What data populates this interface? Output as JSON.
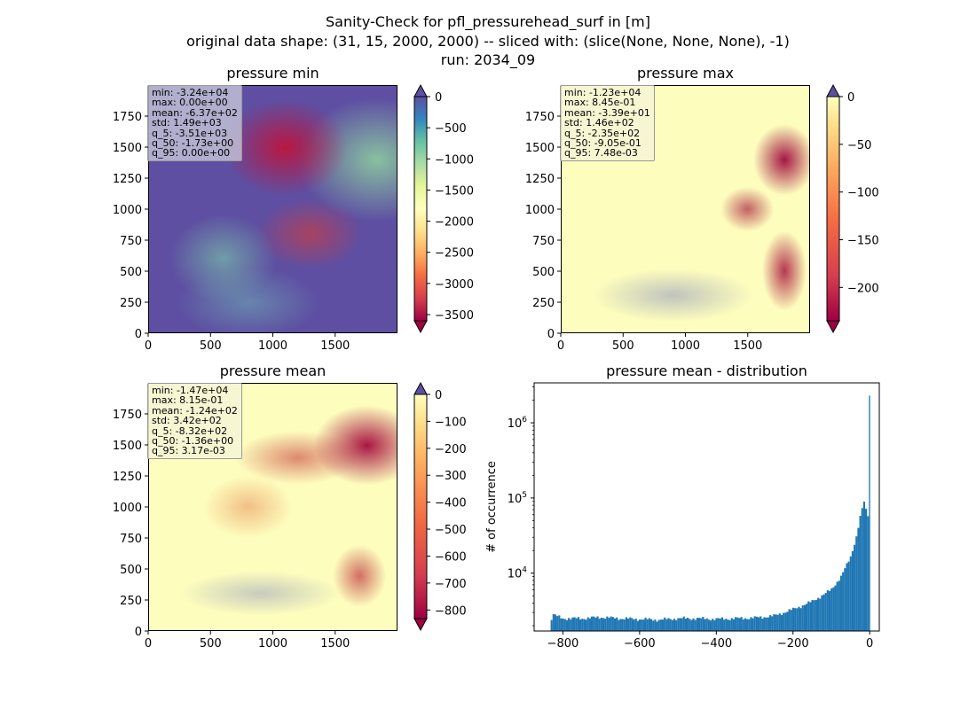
{
  "figure": {
    "title_lines": [
      "Sanity-Check for pfl_pressurehead_surf in [m]",
      "original data shape: (31, 15, 2000, 2000) -- sliced with: (slice(None, None, None), -1)",
      "run: 2034_09"
    ]
  },
  "chart_data": [
    {
      "type": "heatmap",
      "title": "pressure min",
      "colormap": "Spectral",
      "x_ticks": [
        "0",
        "500",
        "1000",
        "1500"
      ],
      "y_ticks": [
        "0",
        "250",
        "500",
        "750",
        "1000",
        "1250",
        "1500",
        "1750"
      ],
      "xlim": [
        0,
        2000
      ],
      "ylim": [
        0,
        2000
      ],
      "colorbar": {
        "ticks": [
          "0",
          "−500",
          "−1000",
          "−1500",
          "−2000",
          "−2500",
          "−3000",
          "−3500"
        ],
        "range": [
          -3600,
          0
        ],
        "extend": "both"
      },
      "stats": [
        "min: -3.24e+04",
        "max: 0.00e+00",
        "mean: -6.37e+02",
        "std: 1.49e+03",
        "q_5: -3.51e+03",
        "q_50: -1.73e+00",
        "q_95: 0.00e+00"
      ]
    },
    {
      "type": "heatmap",
      "title": "pressure max",
      "colormap": "Spectral",
      "x_ticks": [
        "0",
        "500",
        "1000",
        "1500"
      ],
      "y_ticks": [
        "0",
        "250",
        "500",
        "750",
        "1000",
        "1250",
        "1500",
        "1750"
      ],
      "xlim": [
        0,
        2000
      ],
      "ylim": [
        0,
        2000
      ],
      "colorbar": {
        "ticks": [
          "0",
          "−50",
          "−100",
          "−150",
          "−200"
        ],
        "range": [
          -235,
          0
        ],
        "extend": "both"
      },
      "stats": [
        "min: -1.23e+04",
        "max: 8.45e-01",
        "mean: -3.39e+01",
        "std: 1.46e+02",
        "q_5: -2.35e+02",
        "q_50: -9.05e-01",
        "q_95: 7.48e-03"
      ]
    },
    {
      "type": "heatmap",
      "title": "pressure mean",
      "colormap": "Spectral",
      "x_ticks": [
        "0",
        "500",
        "1000",
        "1500"
      ],
      "y_ticks": [
        "0",
        "250",
        "500",
        "750",
        "1000",
        "1250",
        "1500",
        "1750"
      ],
      "xlim": [
        0,
        2000
      ],
      "ylim": [
        0,
        2000
      ],
      "colorbar": {
        "ticks": [
          "0",
          "−100",
          "−200",
          "−300",
          "−400",
          "−500",
          "−600",
          "−700",
          "−800"
        ],
        "range": [
          -832,
          0
        ],
        "extend": "both"
      },
      "stats": [
        "min: -1.47e+04",
        "max: 8.15e-01",
        "mean: -1.24e+02",
        "std: 3.42e+02",
        "q_5: -8.32e+02",
        "q_50: -1.36e+00",
        "q_95: 3.17e-03"
      ]
    },
    {
      "type": "bar",
      "title": "pressure mean - distribution",
      "ylabel": "# of occurrence",
      "y_scale": "log",
      "color": "#1f77b4",
      "x_ticks": [
        "−800",
        "−600",
        "−400",
        "−200",
        "0"
      ],
      "y_ticks": [
        "10^4",
        "10^5",
        "10^6"
      ],
      "xlim": [
        -875,
        25
      ],
      "ylim": [
        1700,
        3400000
      ],
      "bin_width": 5,
      "bins": [
        {
          "x": -832,
          "y": 2300
        },
        {
          "x": -825,
          "y": 2800
        },
        {
          "x": -800,
          "y": 2500
        },
        {
          "x": -750,
          "y": 2500
        },
        {
          "x": -700,
          "y": 2600
        },
        {
          "x": -650,
          "y": 2500
        },
        {
          "x": -600,
          "y": 2450
        },
        {
          "x": -550,
          "y": 2400
        },
        {
          "x": -500,
          "y": 2500
        },
        {
          "x": -450,
          "y": 2500
        },
        {
          "x": -400,
          "y": 2450
        },
        {
          "x": -350,
          "y": 2500
        },
        {
          "x": -300,
          "y": 2550
        },
        {
          "x": -250,
          "y": 2700
        },
        {
          "x": -200,
          "y": 3300
        },
        {
          "x": -150,
          "y": 4200
        },
        {
          "x": -100,
          "y": 6000
        },
        {
          "x": -75,
          "y": 9000
        },
        {
          "x": -50,
          "y": 16000
        },
        {
          "x": -35,
          "y": 30000
        },
        {
          "x": -25,
          "y": 55000
        },
        {
          "x": -15,
          "y": 90000
        },
        {
          "x": -10,
          "y": 70000
        },
        {
          "x": -5,
          "y": 55000
        },
        {
          "x": -2,
          "y": 80000
        },
        {
          "x": 0,
          "y": 2300000
        }
      ]
    }
  ]
}
